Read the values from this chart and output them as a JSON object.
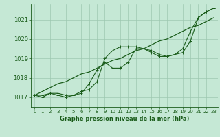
{
  "title": "Graphe pression niveau de la mer (hPa)",
  "background_color": "#c5e8d5",
  "grid_color": "#9dc8b0",
  "line_color": "#1a5c1a",
  "xlim": [
    -0.5,
    23.5
  ],
  "ylim": [
    1016.5,
    1021.8
  ],
  "yticks": [
    1017,
    1018,
    1019,
    1020,
    1021
  ],
  "xticks": [
    0,
    1,
    2,
    3,
    4,
    5,
    6,
    7,
    8,
    9,
    10,
    11,
    12,
    13,
    14,
    15,
    16,
    17,
    18,
    19,
    20,
    21,
    22,
    23
  ],
  "series1_x": [
    0,
    1,
    2,
    3,
    4,
    5,
    6,
    7,
    8,
    9,
    10,
    11,
    12,
    13,
    14,
    15,
    16,
    17,
    18,
    19,
    20,
    21,
    22,
    23
  ],
  "series1_y": [
    1017.1,
    1017.1,
    1017.2,
    1017.2,
    1017.1,
    1017.1,
    1017.3,
    1017.4,
    1017.8,
    1019.0,
    1019.4,
    1019.6,
    1019.6,
    1019.6,
    1019.5,
    1019.3,
    1019.1,
    1019.1,
    1019.2,
    1019.3,
    1019.9,
    1021.1,
    1021.4,
    1021.6
  ],
  "series2_x": [
    0,
    1,
    2,
    3,
    4,
    5,
    6,
    7,
    8,
    9,
    10,
    11,
    12,
    13,
    14,
    15,
    16,
    17,
    18,
    19,
    20,
    21,
    22,
    23
  ],
  "series2_y": [
    1017.1,
    1017.0,
    1017.2,
    1017.1,
    1017.0,
    1017.1,
    1017.2,
    1017.7,
    1018.4,
    1018.8,
    1018.5,
    1018.5,
    1018.8,
    1019.5,
    1019.5,
    1019.4,
    1019.2,
    1019.1,
    1019.2,
    1019.5,
    1020.4,
    1021.1,
    1021.4,
    1021.6
  ],
  "series3_x": [
    0,
    1,
    2,
    3,
    4,
    5,
    6,
    7,
    8,
    9,
    10,
    11,
    12,
    13,
    14,
    15,
    16,
    17,
    18,
    19,
    20,
    21,
    22,
    23
  ],
  "series3_y": [
    1017.1,
    1017.3,
    1017.5,
    1017.7,
    1017.8,
    1018.0,
    1018.2,
    1018.3,
    1018.5,
    1018.7,
    1018.9,
    1019.0,
    1019.2,
    1019.4,
    1019.5,
    1019.7,
    1019.9,
    1020.0,
    1020.2,
    1020.4,
    1020.6,
    1020.7,
    1020.9,
    1021.1
  ]
}
